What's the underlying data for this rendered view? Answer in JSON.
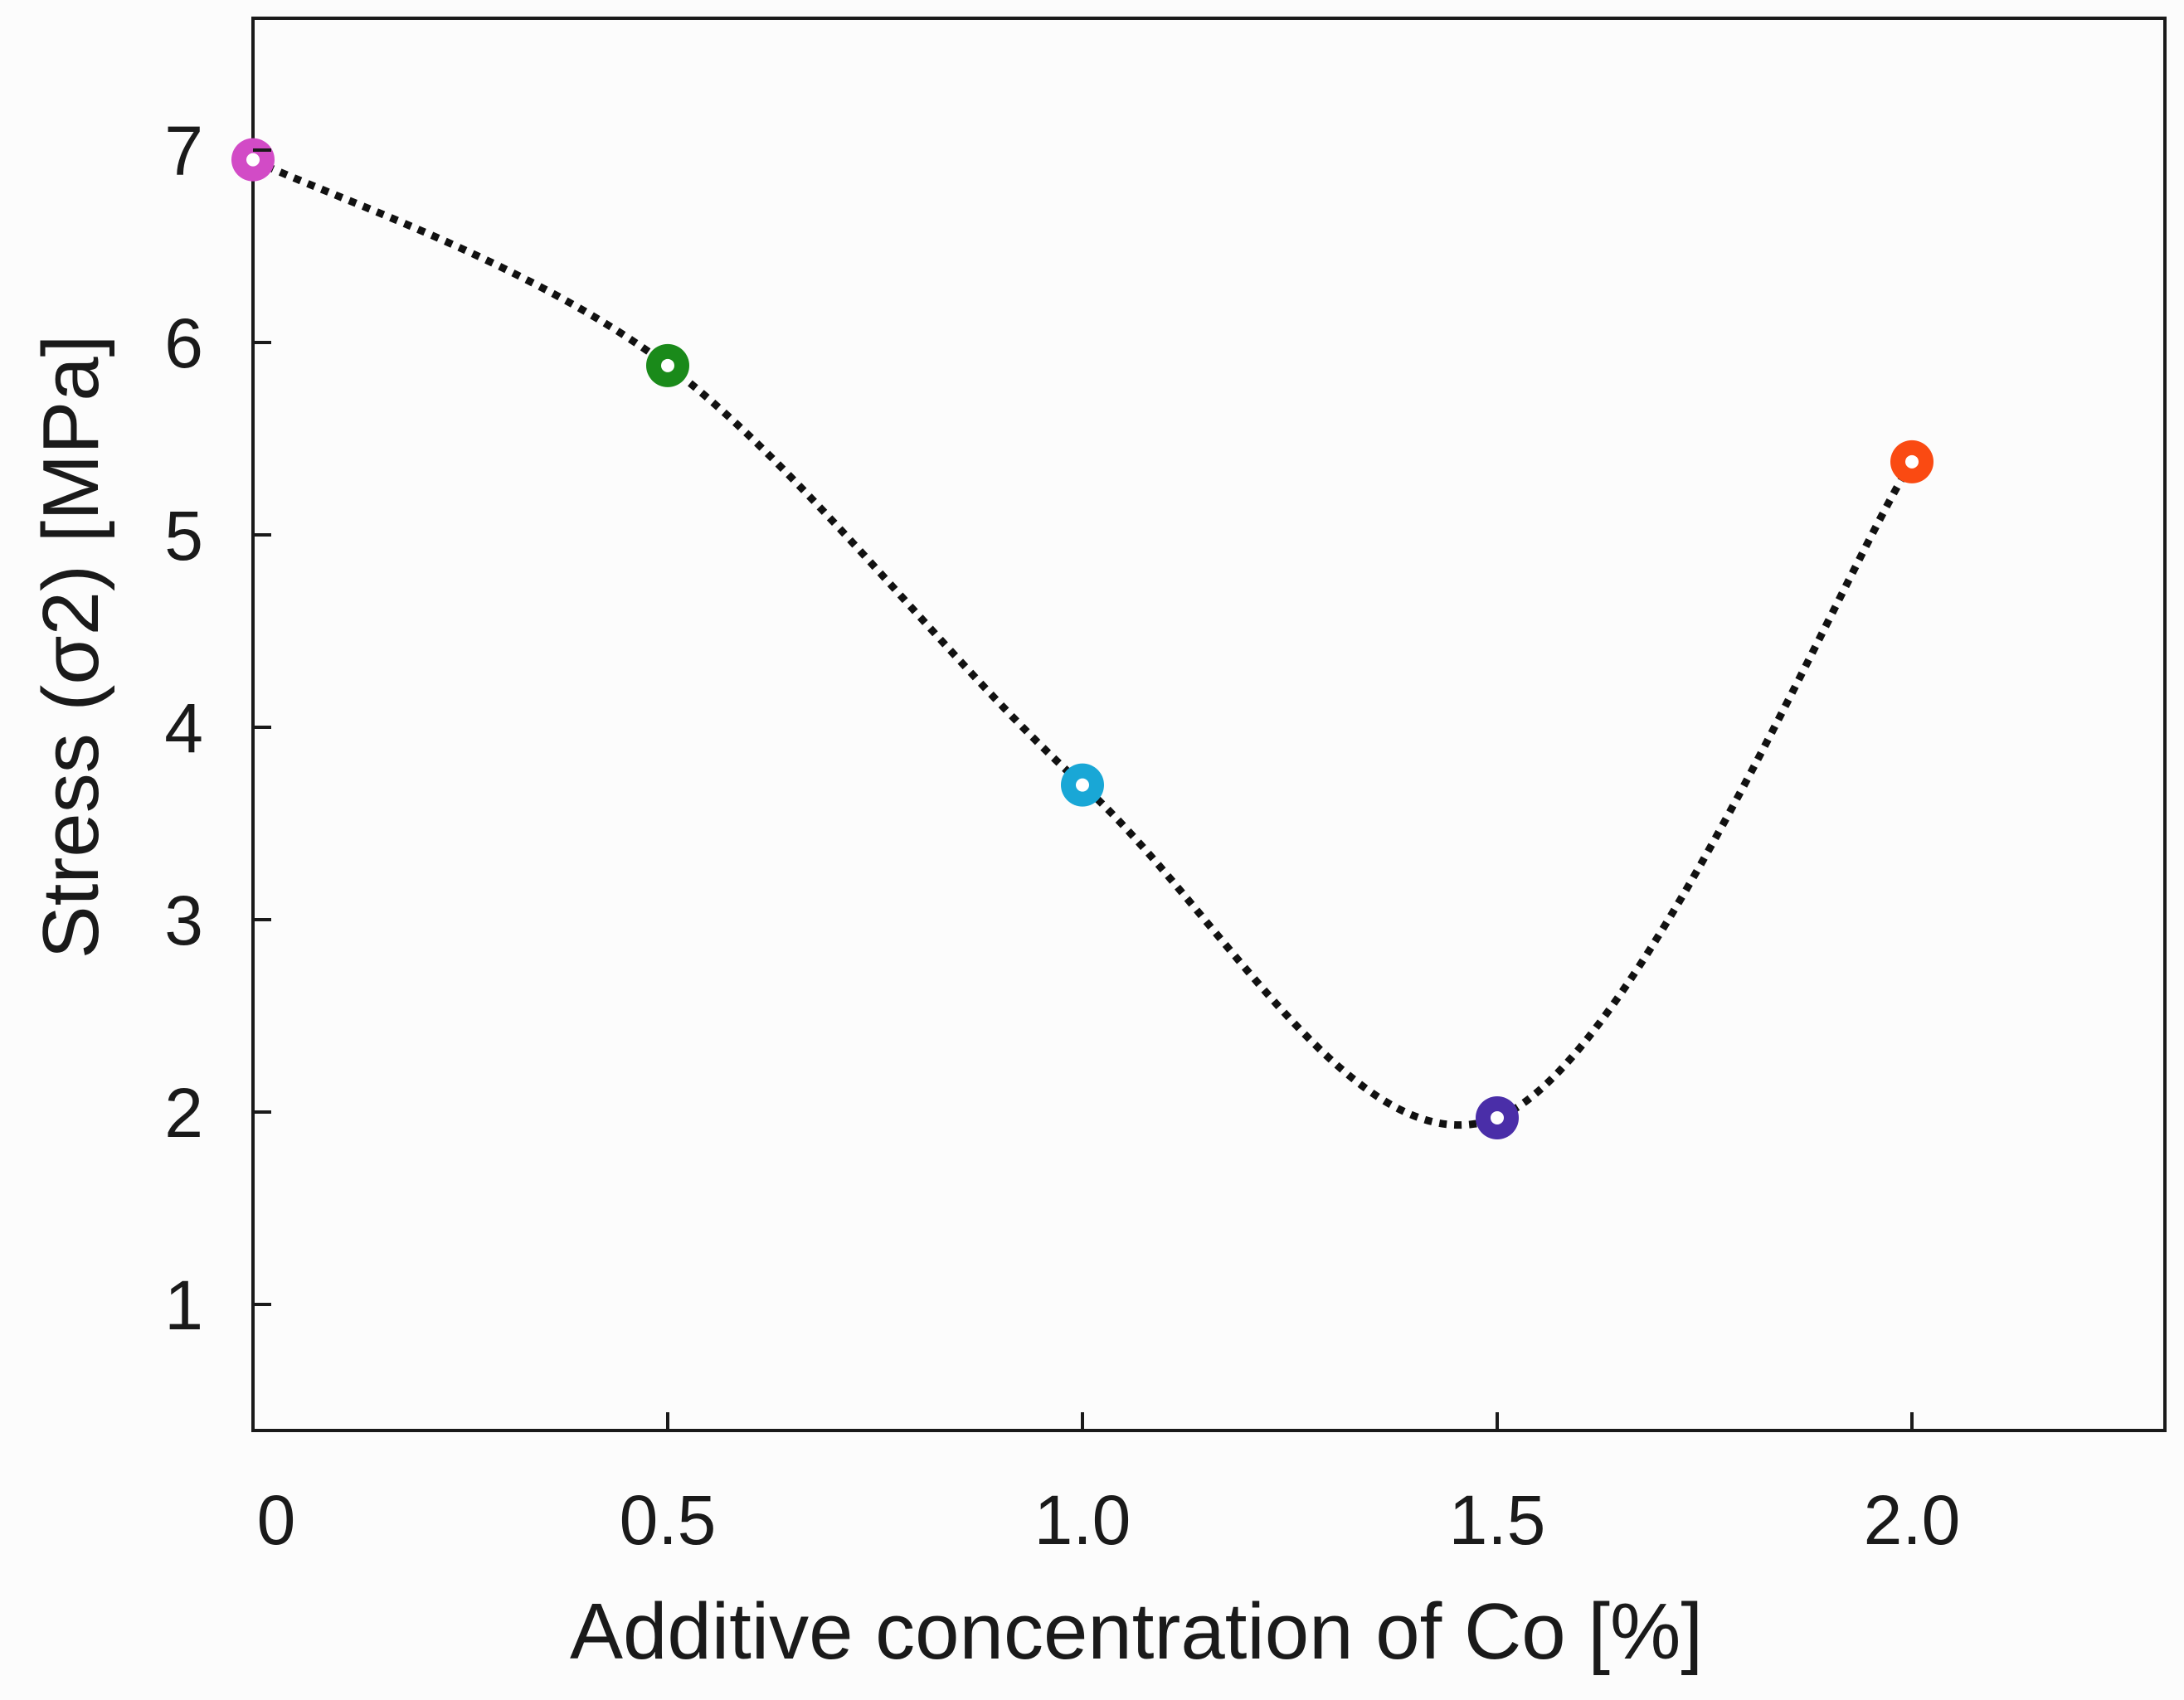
{
  "chart_data": {
    "type": "line",
    "title": "",
    "xlabel": "Additive concentration of Co [%]",
    "ylabel": "Stress (σ2) [MPa]",
    "xlim": [
      0,
      2.3
    ],
    "ylim": [
      0.35,
      7.7
    ],
    "x_ticks": [
      {
        "value": 0,
        "label": "0"
      },
      {
        "value": 0.5,
        "label": "0.5"
      },
      {
        "value": 1.0,
        "label": "1.0"
      },
      {
        "value": 1.5,
        "label": "1.5"
      },
      {
        "value": 2.0,
        "label": "2.0"
      }
    ],
    "y_ticks": [
      {
        "value": 1,
        "label": "1"
      },
      {
        "value": 2,
        "label": "2"
      },
      {
        "value": 3,
        "label": "3"
      },
      {
        "value": 4,
        "label": "4"
      },
      {
        "value": 5,
        "label": "5"
      },
      {
        "value": 6,
        "label": "6"
      },
      {
        "value": 7,
        "label": "7"
      }
    ],
    "grid": false,
    "line_style": "dotted",
    "series": [
      {
        "name": "Stress",
        "points": [
          {
            "x": 0,
            "y": 6.95,
            "color": "#d24bc6"
          },
          {
            "x": 0.5,
            "y": 5.88,
            "color": "#1a8a1a"
          },
          {
            "x": 1.0,
            "y": 3.7,
            "color": "#19a7d6"
          },
          {
            "x": 1.5,
            "y": 1.97,
            "color": "#4a2ea8"
          },
          {
            "x": 2.0,
            "y": 5.38,
            "color": "#fa4a12"
          }
        ]
      }
    ]
  }
}
